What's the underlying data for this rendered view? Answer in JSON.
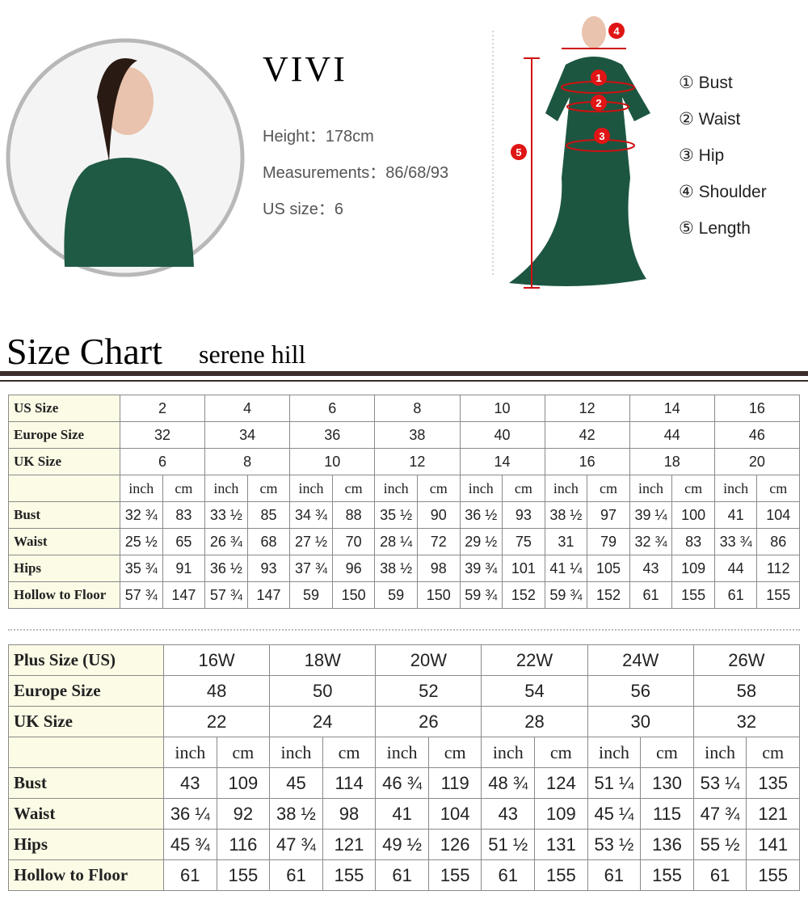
{
  "profile": {
    "name": "VIVI",
    "height": "Height：178cm",
    "measurements": "Measurements：86/68/93",
    "us_size": "US size：6"
  },
  "diagram": {
    "markers": [
      "1",
      "2",
      "3",
      "4",
      "5"
    ],
    "legend": [
      "① Bust",
      "② Waist",
      "③ Hip",
      "④ Shoulder",
      "⑤ Length"
    ]
  },
  "heading": {
    "title": "Size Chart",
    "brand": "serene hill"
  },
  "table1": {
    "size_rows": [
      [
        "US Size",
        "2",
        "4",
        "6",
        "8",
        "10",
        "12",
        "14",
        "16"
      ],
      [
        "Europe Size",
        "32",
        "34",
        "36",
        "38",
        "40",
        "42",
        "44",
        "46"
      ],
      [
        "UK Size",
        "6",
        "8",
        "10",
        "12",
        "14",
        "16",
        "18",
        "20"
      ]
    ],
    "unit_row": [
      "inch",
      "cm",
      "inch",
      "cm",
      "inch",
      "cm",
      "inch",
      "cm",
      "inch",
      "cm",
      "inch",
      "cm",
      "inch",
      "cm",
      "inch",
      "cm"
    ],
    "measure_rows": [
      [
        "Bust",
        "32 ¾",
        "83",
        "33 ½",
        "85",
        "34 ¾",
        "88",
        "35 ½",
        "90",
        "36 ½",
        "93",
        "38 ½",
        "97",
        "39 ¼",
        "100",
        "41",
        "104"
      ],
      [
        "Waist",
        "25 ½",
        "65",
        "26 ¾",
        "68",
        "27 ½",
        "70",
        "28 ¼",
        "72",
        "29 ½",
        "75",
        "31",
        "79",
        "32 ¾",
        "83",
        "33 ¾",
        "86"
      ],
      [
        "Hips",
        "35 ¾",
        "91",
        "36 ½",
        "93",
        "37 ¾",
        "96",
        "38 ½",
        "98",
        "39 ¾",
        "101",
        "41 ¼",
        "105",
        "43",
        "109",
        "44",
        "112"
      ],
      [
        "Hollow to Floor",
        "57 ¾",
        "147",
        "57 ¾",
        "147",
        "59",
        "150",
        "59",
        "150",
        "59 ¾",
        "152",
        "59 ¾",
        "152",
        "61",
        "155",
        "61",
        "155"
      ]
    ]
  },
  "table2": {
    "size_rows": [
      [
        "Plus Size (US)",
        "16W",
        "18W",
        "20W",
        "22W",
        "24W",
        "26W"
      ],
      [
        "Europe Size",
        "48",
        "50",
        "52",
        "54",
        "56",
        "58"
      ],
      [
        "UK Size",
        "22",
        "24",
        "26",
        "28",
        "30",
        "32"
      ]
    ],
    "unit_row": [
      "inch",
      "cm",
      "inch",
      "cm",
      "inch",
      "cm",
      "inch",
      "cm",
      "inch",
      "cm",
      "inch",
      "cm"
    ],
    "measure_rows": [
      [
        "Bust",
        "43",
        "109",
        "45",
        "114",
        "46 ¾",
        "119",
        "48 ¾",
        "124",
        "51 ¼",
        "130",
        "53 ¼",
        "135"
      ],
      [
        "Waist",
        "36 ¼",
        "92",
        "38 ½",
        "98",
        "41",
        "104",
        "43",
        "109",
        "45 ¼",
        "115",
        "47 ¾",
        "121"
      ],
      [
        "Hips",
        "45 ¾",
        "116",
        "47 ¾",
        "121",
        "49 ½",
        "126",
        "51 ½",
        "131",
        "53 ½",
        "136",
        "55 ½",
        "141"
      ],
      [
        "Hollow to Floor",
        "61",
        "155",
        "61",
        "155",
        "61",
        "155",
        "61",
        "155",
        "61",
        "155",
        "61",
        "155"
      ]
    ]
  }
}
